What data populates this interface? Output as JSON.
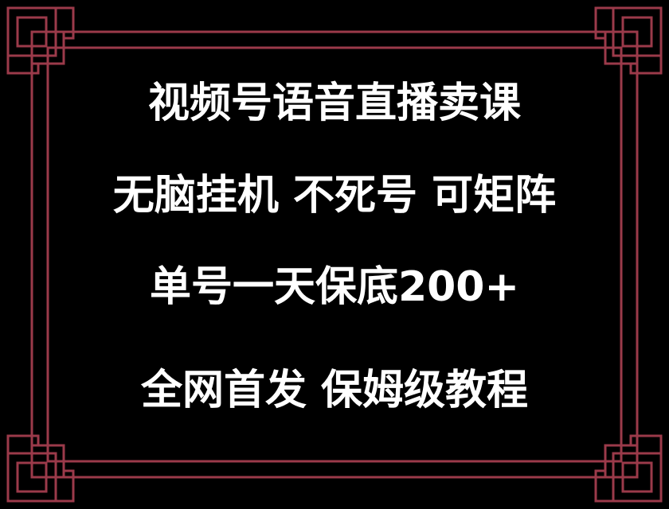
{
  "lines": {
    "line1": "视频号语音直播卖课",
    "line2": "无脑挂机  不死号  可矩阵",
    "line3": "单号一天保底200+",
    "line4": "全网首发  保姆级教程"
  },
  "colors": {
    "background": "#000000",
    "text": "#ffffff",
    "frame": "#9b3a4a"
  }
}
